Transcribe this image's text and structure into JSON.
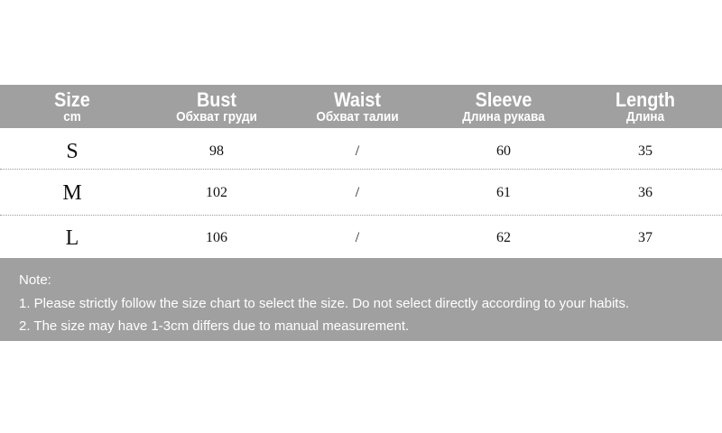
{
  "header": [
    {
      "title": "Size",
      "subtitle": "cm"
    },
    {
      "title": "Bust",
      "subtitle": "Обхват груди"
    },
    {
      "title": "Waist",
      "subtitle": "Обхват талии"
    },
    {
      "title": "Sleeve",
      "subtitle": "Длина рукава"
    },
    {
      "title": "Length",
      "subtitle": "Длина"
    }
  ],
  "rows": [
    [
      "S",
      "98",
      "/",
      "60",
      "35"
    ],
    [
      "M",
      "102",
      "/",
      "61",
      "36"
    ],
    [
      "L",
      "106",
      "/",
      "62",
      "37"
    ]
  ],
  "note": {
    "title": "Note:",
    "lines": [
      "1. Please strictly follow the size chart to select the size. Do not select directly according to your habits.",
      "2. The size may have 1-3cm differs due to manual measurement."
    ]
  },
  "colors": {
    "band": "#a0a0a0",
    "text_on_band": "#ffffff"
  }
}
